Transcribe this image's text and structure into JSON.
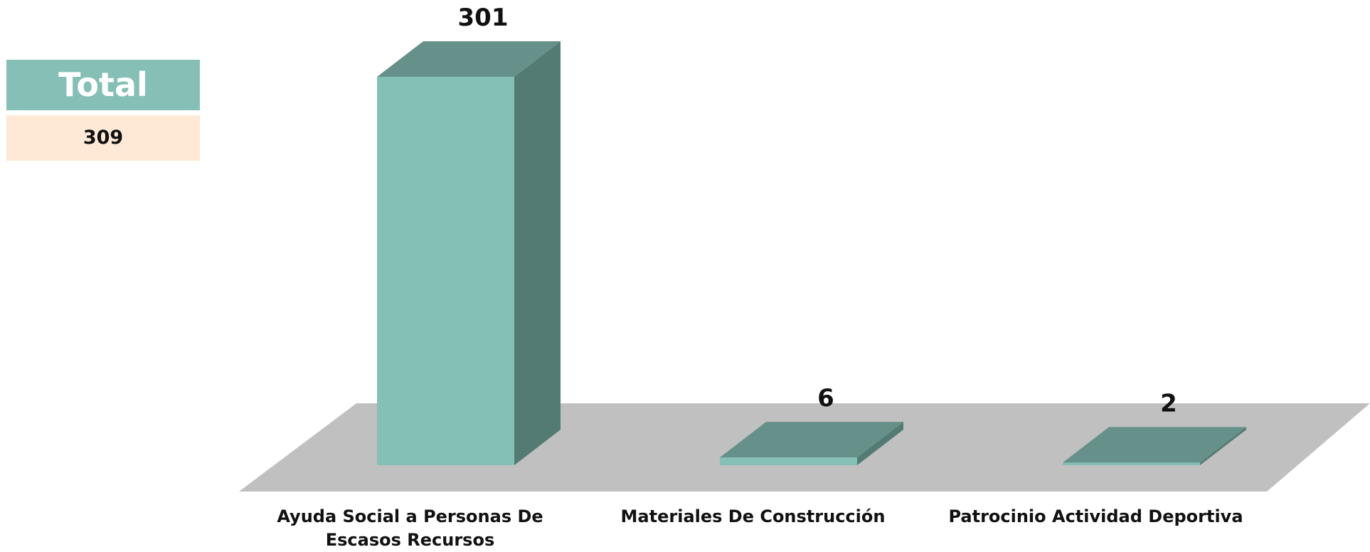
{
  "chart_data": {
    "type": "bar3d",
    "categories": [
      "Ayuda Social a Personas De Escasos Recursos",
      "Materiales De Construcción",
      "Patrocinio Actividad Deportiva"
    ],
    "values": [
      301,
      6,
      2
    ],
    "colors": {
      "front": "#85c0b7",
      "side": "#537a73",
      "top": "#65918a",
      "floor": "#c0c0c0"
    },
    "total_label": "Total",
    "total": 309
  }
}
